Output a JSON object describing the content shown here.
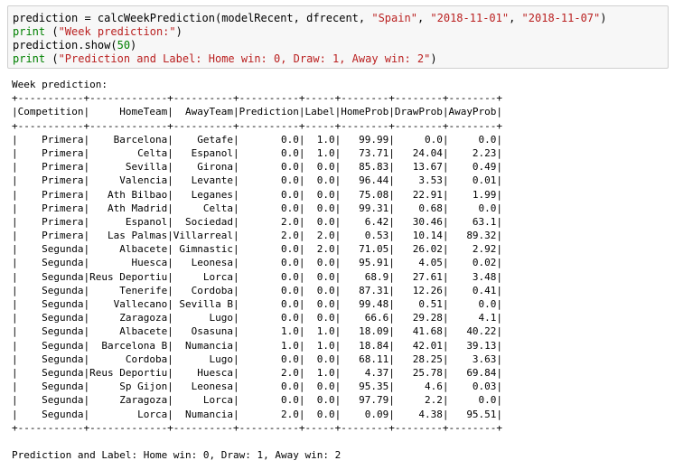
{
  "code_cell": {
    "line1": {
      "prefix": "prediction = calcWeekPrediction(modelRecent, dfrecent, ",
      "arg_country": "\"Spain\"",
      "sep1": ", ",
      "arg_start": "\"2018-11-01\"",
      "sep2": ", ",
      "arg_end": "\"2018-11-07\"",
      "suffix": ")"
    },
    "line2": {
      "keyword": "print",
      "open": " (",
      "string": "\"Week prediction:\"",
      "close": ")"
    },
    "line3": {
      "prefix": "prediction.show(",
      "number": "50",
      "suffix": ")"
    },
    "line4": {
      "keyword": "print",
      "open": " (",
      "string": "\"Prediction and Label: Home win: 0, Draw: 1, Away win: 2\"",
      "close": ")"
    }
  },
  "output": {
    "header_text": "Week prediction:",
    "footer_text": "Prediction and Label: Home win: 0, Draw: 1, Away win: 2",
    "table": {
      "columns": [
        "Competition",
        "HomeTeam",
        "AwayTeam",
        "Prediction",
        "Label",
        "HomeProb",
        "DrawProb",
        "AwayProb"
      ],
      "rows": [
        [
          "Primera",
          "Barcelona",
          "Getafe",
          "0.0",
          "1.0",
          "99.99",
          "0.0",
          "0.0"
        ],
        [
          "Primera",
          "Celta",
          "Espanol",
          "0.0",
          "1.0",
          "73.71",
          "24.04",
          "2.23"
        ],
        [
          "Primera",
          "Sevilla",
          "Girona",
          "0.0",
          "0.0",
          "85.83",
          "13.67",
          "0.49"
        ],
        [
          "Primera",
          "Valencia",
          "Levante",
          "0.0",
          "0.0",
          "96.44",
          "3.53",
          "0.01"
        ],
        [
          "Primera",
          "Ath Bilbao",
          "Leganes",
          "0.0",
          "0.0",
          "75.08",
          "22.91",
          "1.99"
        ],
        [
          "Primera",
          "Ath Madrid",
          "Celta",
          "0.0",
          "0.0",
          "99.31",
          "0.68",
          "0.0"
        ],
        [
          "Primera",
          "Espanol",
          "Sociedad",
          "2.0",
          "0.0",
          "6.42",
          "30.46",
          "63.1"
        ],
        [
          "Primera",
          "Las Palmas",
          "Villarreal",
          "2.0",
          "2.0",
          "0.53",
          "10.14",
          "89.32"
        ],
        [
          "Segunda",
          "Albacete",
          "Gimnastic",
          "0.0",
          "2.0",
          "71.05",
          "26.02",
          "2.92"
        ],
        [
          "Segunda",
          "Huesca",
          "Leonesa",
          "0.0",
          "0.0",
          "95.91",
          "4.05",
          "0.02"
        ],
        [
          "Segunda",
          "Reus Deportiu",
          "Lorca",
          "0.0",
          "0.0",
          "68.9",
          "27.61",
          "3.48"
        ],
        [
          "Segunda",
          "Tenerife",
          "Cordoba",
          "0.0",
          "0.0",
          "87.31",
          "12.26",
          "0.41"
        ],
        [
          "Segunda",
          "Vallecano",
          "Sevilla B",
          "0.0",
          "0.0",
          "99.48",
          "0.51",
          "0.0"
        ],
        [
          "Segunda",
          "Zaragoza",
          "Lugo",
          "0.0",
          "0.0",
          "66.6",
          "29.28",
          "4.1"
        ],
        [
          "Segunda",
          "Albacete",
          "Osasuna",
          "1.0",
          "1.0",
          "18.09",
          "41.68",
          "40.22"
        ],
        [
          "Segunda",
          "Barcelona B",
          "Numancia",
          "1.0",
          "1.0",
          "18.84",
          "42.01",
          "39.13"
        ],
        [
          "Segunda",
          "Cordoba",
          "Lugo",
          "0.0",
          "0.0",
          "68.11",
          "28.25",
          "3.63"
        ],
        [
          "Segunda",
          "Reus Deportiu",
          "Huesca",
          "2.0",
          "1.0",
          "4.37",
          "25.78",
          "69.84"
        ],
        [
          "Segunda",
          "Sp Gijon",
          "Leonesa",
          "0.0",
          "0.0",
          "95.35",
          "4.6",
          "0.03"
        ],
        [
          "Segunda",
          "Zaragoza",
          "Lorca",
          "0.0",
          "0.0",
          "97.79",
          "2.2",
          "0.0"
        ],
        [
          "Segunda",
          "Lorca",
          "Numancia",
          "2.0",
          "0.0",
          "0.09",
          "4.38",
          "95.51"
        ]
      ]
    }
  }
}
